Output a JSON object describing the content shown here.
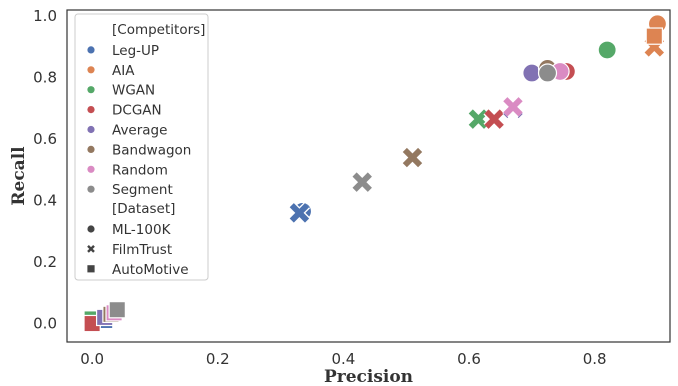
{
  "chart_data": {
    "type": "scatter",
    "xlabel": "Precision",
    "ylabel": "Recall",
    "xlim": [
      -0.04,
      0.92
    ],
    "ylim": [
      -0.06,
      1.02
    ],
    "xticks": [
      "0.0",
      "0.2",
      "0.4",
      "0.6",
      "0.8"
    ],
    "xtick_values": [
      0.0,
      0.2,
      0.4,
      0.6,
      0.8
    ],
    "yticks": [
      "0.0",
      "0.2",
      "0.4",
      "0.6",
      "0.8",
      "1.0"
    ],
    "ytick_values": [
      0.0,
      0.2,
      0.4,
      0.6,
      0.8,
      1.0
    ],
    "grid": false,
    "legend_position": "upper-left",
    "legend": {
      "competitors_title": "[Competitors]",
      "dataset_title": "[Dataset]",
      "competitors": [
        {
          "name": "Leg-UP",
          "color": "#4c72b0"
        },
        {
          "name": "AIA",
          "color": "#dd8452"
        },
        {
          "name": "WGAN",
          "color": "#55a868"
        },
        {
          "name": "DCGAN",
          "color": "#c44e52"
        },
        {
          "name": "Average",
          "color": "#8172b3"
        },
        {
          "name": "Bandwagon",
          "color": "#937860"
        },
        {
          "name": "Random",
          "color": "#da8bc3"
        },
        {
          "name": "Segment",
          "color": "#8c8c8c"
        }
      ],
      "datasets": [
        {
          "name": "ML-100K",
          "marker": "circle"
        },
        {
          "name": "FilmTrust",
          "marker": "x"
        },
        {
          "name": "AutoMotive",
          "marker": "square"
        }
      ]
    },
    "series": [
      {
        "competitor": "Leg-UP",
        "dataset": "ML-100K",
        "x": 0.335,
        "y": 0.365
      },
      {
        "competitor": "Leg-UP",
        "dataset": "FilmTrust",
        "x": 0.33,
        "y": 0.36
      },
      {
        "competitor": "Leg-UP",
        "dataset": "AutoMotive",
        "x": 0.02,
        "y": 0.01
      },
      {
        "competitor": "AIA",
        "dataset": "ML-100K",
        "x": 0.9,
        "y": 0.975
      },
      {
        "competitor": "AIA",
        "dataset": "FilmTrust",
        "x": 0.895,
        "y": 0.9
      },
      {
        "competitor": "AIA",
        "dataset": "AutoMotive",
        "x": 0.895,
        "y": 0.935
      },
      {
        "competitor": "WGAN",
        "dataset": "ML-100K",
        "x": 0.82,
        "y": 0.89
      },
      {
        "competitor": "WGAN",
        "dataset": "FilmTrust",
        "x": 0.615,
        "y": 0.665
      },
      {
        "competitor": "WGAN",
        "dataset": "AutoMotive",
        "x": 0.0,
        "y": 0.015
      },
      {
        "competitor": "DCGAN",
        "dataset": "ML-100K",
        "x": 0.755,
        "y": 0.82
      },
      {
        "competitor": "DCGAN",
        "dataset": "FilmTrust",
        "x": 0.64,
        "y": 0.665
      },
      {
        "competitor": "DCGAN",
        "dataset": "AutoMotive",
        "x": 0.0,
        "y": 0.0
      },
      {
        "competitor": "Average",
        "dataset": "ML-100K",
        "x": 0.7,
        "y": 0.815
      },
      {
        "competitor": "Average",
        "dataset": "FilmTrust",
        "x": 0.67,
        "y": 0.7
      },
      {
        "competitor": "Average",
        "dataset": "AutoMotive",
        "x": 0.02,
        "y": 0.02
      },
      {
        "competitor": "Bandwagon",
        "dataset": "ML-100K",
        "x": 0.725,
        "y": 0.83
      },
      {
        "competitor": "Bandwagon",
        "dataset": "FilmTrust",
        "x": 0.51,
        "y": 0.54
      },
      {
        "competitor": "Bandwagon",
        "dataset": "AutoMotive",
        "x": 0.03,
        "y": 0.03
      },
      {
        "competitor": "Random",
        "dataset": "ML-100K",
        "x": 0.745,
        "y": 0.82
      },
      {
        "competitor": "Random",
        "dataset": "FilmTrust",
        "x": 0.67,
        "y": 0.705
      },
      {
        "competitor": "Random",
        "dataset": "AutoMotive",
        "x": 0.035,
        "y": 0.035
      },
      {
        "competitor": "Segment",
        "dataset": "ML-100K",
        "x": 0.725,
        "y": 0.815
      },
      {
        "competitor": "Segment",
        "dataset": "FilmTrust",
        "x": 0.43,
        "y": 0.46
      },
      {
        "competitor": "Segment",
        "dataset": "AutoMotive",
        "x": 0.04,
        "y": 0.045
      }
    ]
  }
}
